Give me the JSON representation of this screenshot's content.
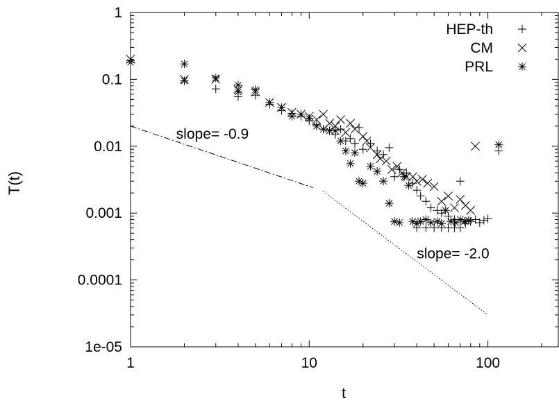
{
  "chart_data": {
    "type": "scatter",
    "title": "",
    "xlabel": "t",
    "ylabel": "T(t)",
    "x_scale": "log",
    "y_scale": "log",
    "xlim": [
      1,
      250
    ],
    "ylim": [
      1e-05,
      1
    ],
    "grid": false,
    "legend_position": "top-right",
    "x_ticks": [
      1,
      10,
      100
    ],
    "x_tick_labels": [
      "1",
      "10",
      "100"
    ],
    "y_ticks": [
      1e-05,
      0.0001,
      0.001,
      0.01,
      0.1,
      1
    ],
    "y_tick_labels": [
      "1e-05",
      "0.0001",
      "0.001",
      "0.01",
      "0.1",
      "1"
    ],
    "series": [
      {
        "name": "HEP-th",
        "marker": "plus",
        "points": [
          [
            1,
            0.19
          ],
          [
            2,
            0.095
          ],
          [
            3,
            0.072
          ],
          [
            4,
            0.055
          ],
          [
            5,
            0.058
          ],
          [
            6,
            0.042
          ],
          [
            7,
            0.034
          ],
          [
            8,
            0.031
          ],
          [
            9,
            0.028
          ],
          [
            10,
            0.024
          ],
          [
            11,
            0.021
          ],
          [
            12,
            0.018
          ],
          [
            13,
            0.017
          ],
          [
            14,
            0.015
          ],
          [
            15,
            0.018
          ],
          [
            16,
            0.012
          ],
          [
            17,
            0.013
          ],
          [
            18,
            0.011
          ],
          [
            19,
            0.019
          ],
          [
            20,
            0.009
          ],
          [
            22,
            0.011
          ],
          [
            24,
            0.0085
          ],
          [
            26,
            0.0075
          ],
          [
            28,
            0.0095
          ],
          [
            30,
            0.0035
          ],
          [
            32,
            0.0045
          ],
          [
            35,
            0.004
          ],
          [
            38,
            0.0028
          ],
          [
            40,
            0.0022
          ],
          [
            42,
            0.0018
          ],
          [
            45,
            0.0015
          ],
          [
            48,
            0.0012
          ],
          [
            52,
            0.0011
          ],
          [
            55,
            0.001
          ],
          [
            60,
            0.0009
          ],
          [
            65,
            0.0008
          ],
          [
            70,
            0.003
          ],
          [
            75,
            0.0007
          ],
          [
            80,
            0.00075
          ],
          [
            85,
            0.0008
          ],
          [
            90,
            0.00072
          ],
          [
            95,
            0.00078
          ],
          [
            100,
            0.00082
          ],
          [
            115,
            0.0085
          ],
          [
            40,
            0.0006
          ],
          [
            45,
            0.0006
          ],
          [
            50,
            0.0006
          ],
          [
            55,
            0.0006
          ],
          [
            60,
            0.0006
          ],
          [
            65,
            0.0006
          ],
          [
            70,
            0.0006
          ]
        ]
      },
      {
        "name": "CM",
        "marker": "cross",
        "points": [
          [
            1,
            0.2
          ],
          [
            2,
            0.1
          ],
          [
            3,
            0.1
          ],
          [
            4,
            0.07
          ],
          [
            5,
            0.065
          ],
          [
            6,
            0.045
          ],
          [
            7,
            0.038
          ],
          [
            8,
            0.032
          ],
          [
            9,
            0.03
          ],
          [
            10,
            0.028
          ],
          [
            11,
            0.025
          ],
          [
            12,
            0.03
          ],
          [
            13,
            0.022
          ],
          [
            14,
            0.02
          ],
          [
            15,
            0.025
          ],
          [
            16,
            0.016
          ],
          [
            17,
            0.022
          ],
          [
            18,
            0.018
          ],
          [
            20,
            0.014
          ],
          [
            21,
            0.012
          ],
          [
            22,
            0.0095
          ],
          [
            24,
            0.0075
          ],
          [
            25,
            0.0065
          ],
          [
            27,
            0.006
          ],
          [
            29,
            0.0045
          ],
          [
            31,
            0.005
          ],
          [
            33,
            0.004
          ],
          [
            35,
            0.0035
          ],
          [
            38,
            0.0035
          ],
          [
            40,
            0.003
          ],
          [
            43,
            0.0032
          ],
          [
            46,
            0.0028
          ],
          [
            50,
            0.0025
          ],
          [
            55,
            0.0015
          ],
          [
            60,
            0.0018
          ],
          [
            65,
            0.0012
          ],
          [
            70,
            0.0016
          ],
          [
            75,
            0.0013
          ],
          [
            80,
            0.0011
          ],
          [
            85,
            0.01
          ]
        ]
      },
      {
        "name": "PRL",
        "marker": "star",
        "points": [
          [
            1,
            0.18
          ],
          [
            2,
            0.17
          ],
          [
            2,
            0.095
          ],
          [
            3,
            0.105
          ],
          [
            4,
            0.082
          ],
          [
            4,
            0.065
          ],
          [
            5,
            0.07
          ],
          [
            6,
            0.045
          ],
          [
            7,
            0.038
          ],
          [
            8,
            0.028
          ],
          [
            9,
            0.03
          ],
          [
            10,
            0.026
          ],
          [
            11,
            0.02
          ],
          [
            12,
            0.018
          ],
          [
            13,
            0.017
          ],
          [
            14,
            0.017
          ],
          [
            15,
            0.012
          ],
          [
            16,
            0.0085
          ],
          [
            17,
            0.0055
          ],
          [
            18,
            0.008
          ],
          [
            19,
            0.003
          ],
          [
            20,
            0.0028
          ],
          [
            22,
            0.005
          ],
          [
            24,
            0.0042
          ],
          [
            26,
            0.003
          ],
          [
            28,
            0.0014
          ],
          [
            30,
            0.00075
          ],
          [
            32,
            0.00072
          ],
          [
            34,
            0.0035
          ],
          [
            36,
            0.0026
          ],
          [
            38,
            0.00075
          ],
          [
            40,
            0.0007
          ],
          [
            42,
            0.00075
          ],
          [
            45,
            0.0008
          ],
          [
            48,
            0.00072
          ],
          [
            52,
            0.00075
          ],
          [
            55,
            0.0007
          ],
          [
            58,
            0.0011
          ],
          [
            62,
            0.00075
          ],
          [
            66,
            0.00072
          ],
          [
            70,
            0.0008
          ],
          [
            74,
            0.00075
          ],
          [
            78,
            0.00078
          ],
          [
            115,
            0.0105
          ]
        ]
      }
    ],
    "annotations": [
      {
        "type": "line",
        "style": "dash-dot",
        "from": [
          1,
          0.02
        ],
        "to": [
          10.5,
          0.0024
        ],
        "label": "slope= -0.9",
        "label_at": [
          1.8,
          0.013
        ]
      },
      {
        "type": "line",
        "style": "dotted",
        "from": [
          12,
          0.0021
        ],
        "to": [
          100,
          3e-05
        ],
        "label": "slope= -2.0",
        "label_at": [
          40,
          0.00021
        ]
      }
    ]
  }
}
